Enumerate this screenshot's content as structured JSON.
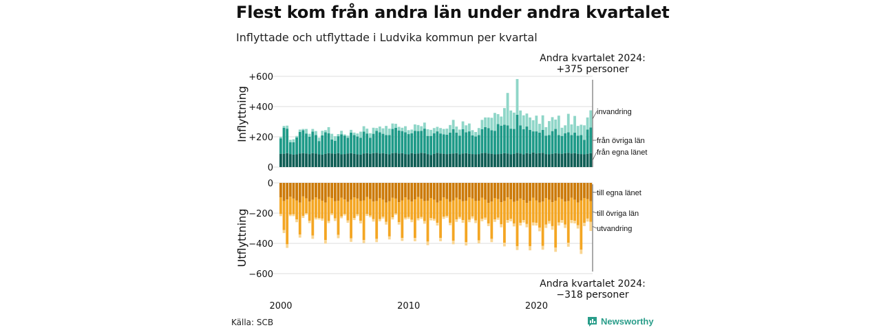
{
  "header": {
    "title": "Flest kom från andra län under andra kvartalet",
    "subtitle": "Inflyttade och utflyttade i Ludvika kommun per kvartal"
  },
  "footer": {
    "source": "Källa: SCB",
    "brand": "Newsworthy",
    "brand_icon": "bar-chart-icon"
  },
  "colors": {
    "in_local": "#0f5e55",
    "in_other": "#1e9a88",
    "in_foreign": "#8fd6c8",
    "out_local": "#cc7a08",
    "out_other": "#f4a623",
    "out_foreign": "#f9d592",
    "grid": "#dddddd",
    "marker_line": "#555555"
  },
  "chart_data": [
    {
      "type": "bar",
      "stacked": true,
      "title": "Inflyttning",
      "ylabel": "Inflyttning",
      "ylim": [
        0,
        600
      ],
      "yticks": [
        0,
        200,
        400,
        600
      ],
      "ytick_labels": [
        "0",
        "+200",
        "+400",
        "+600"
      ],
      "x_start": "2000 Q1",
      "x_end": "2024 Q2",
      "xticks": [
        "2000",
        "2010",
        "2020"
      ],
      "series": [
        {
          "name": "från egna länet",
          "values": [
            88,
            88,
            92,
            86,
            82,
            84,
            90,
            92,
            90,
            86,
            92,
            90,
            84,
            82,
            88,
            92,
            90,
            88,
            92,
            84,
            86,
            90,
            92,
            88,
            84,
            82,
            90,
            92,
            88,
            92,
            94,
            90,
            92,
            88,
            84,
            92,
            94,
            90,
            92,
            86,
            84,
            92,
            88,
            90,
            94,
            92,
            86,
            80,
            88,
            94,
            90,
            88,
            86,
            88,
            90,
            92,
            84,
            90,
            92,
            88,
            86,
            84,
            86,
            92,
            94,
            90,
            88,
            84,
            86,
            88,
            92,
            90,
            84,
            88,
            94,
            90,
            84,
            92,
            88,
            96,
            90,
            92,
            94,
            86,
            84,
            88,
            92,
            90,
            88,
            92,
            94,
            90,
            92,
            88,
            86,
            84,
            88,
            92
          ]
        },
        {
          "name": "från övriga län",
          "values": [
            102,
            172,
            162,
            78,
            82,
            112,
            142,
            152,
            132,
            114,
            142,
            122,
            88,
            128,
            142,
            132,
            92,
            86,
            112,
            132,
            122,
            104,
            136,
            124,
            118,
            112,
            144,
            130,
            106,
            128,
            146,
            140,
            128,
            124,
            128,
            160,
            166,
            152,
            146,
            144,
            134,
            132,
            152,
            148,
            146,
            162,
            120,
            126,
            136,
            142,
            132,
            128,
            128,
            140,
            160,
            136,
            124,
            160,
            138,
            148,
            124,
            118,
            126,
            158,
            170,
            168,
            156,
            156,
            198,
            186,
            188,
            186,
            170,
            164,
            252,
            186,
            166,
            176,
            158,
            140,
            146,
            136,
            152,
            122,
            128,
            150,
            160,
            122,
            118,
            132,
            136,
            122,
            136,
            120,
            126,
            96,
            160,
            170
          ]
        },
        {
          "name": "invandring",
          "values": [
            10,
            12,
            20,
            16,
            20,
            10,
            16,
            8,
            30,
            20,
            18,
            26,
            22,
            30,
            14,
            40,
            38,
            30,
            14,
            24,
            8,
            14,
            18,
            16,
            20,
            40,
            36,
            32,
            30,
            40,
            18,
            38,
            36,
            60,
            42,
            36,
            26,
            24,
            22,
            40,
            26,
            24,
            42,
            40,
            30,
            40,
            44,
            40,
            34,
            30,
            36,
            36,
            40,
            50,
            62,
            40,
            40,
            52,
            46,
            52,
            34,
            30,
            46,
            62,
            64,
            70,
            82,
            118,
            66,
            60,
            110,
            214,
            120,
            108,
            236,
            98,
            92,
            86,
            82,
            74,
            104,
            58,
            96,
            56,
            92,
            92,
            62,
            128,
            54,
            52,
            122,
            70,
            110,
            64,
            68,
            96,
            80,
            113
          ]
        }
      ]
    },
    {
      "type": "bar",
      "stacked": true,
      "title": "Utflyttning",
      "ylabel": "Utflyttning",
      "ylim": [
        -600,
        0
      ],
      "yticks": [
        0,
        -200,
        -400,
        -600
      ],
      "ytick_labels": [
        "0",
        "−200",
        "−400",
        "−600"
      ],
      "x_start": "2000 Q1",
      "x_end": "2024 Q2",
      "xticks": [
        "2000",
        "2010",
        "2020"
      ],
      "series": [
        {
          "name": "till egna länet",
          "values": [
            -96,
            -120,
            -110,
            -92,
            -104,
            -116,
            -130,
            -90,
            -102,
            -124,
            -112,
            -96,
            -108,
            -118,
            -130,
            -94,
            -100,
            -122,
            -118,
            -98,
            -110,
            -126,
            -112,
            -96,
            -104,
            -120,
            -116,
            -94,
            -108,
            -124,
            -120,
            -100,
            -112,
            -130,
            -122,
            -98,
            -104,
            -128,
            -116,
            -96,
            -112,
            -124,
            -110,
            -94,
            -106,
            -120,
            -118,
            -100,
            -112,
            -130,
            -118,
            -96,
            -108,
            -126,
            -116,
            -98,
            -110,
            -122,
            -118,
            -96,
            -104,
            -120,
            -118,
            -98,
            -112,
            -132,
            -124,
            -100,
            -108,
            -128,
            -120,
            -96,
            -110,
            -126,
            -118,
            -104,
            -114,
            -132,
            -120,
            -98,
            -116,
            -130,
            -124,
            -100,
            -112,
            -128,
            -118,
            -96,
            -108,
            -124,
            -120,
            -98,
            -112,
            -130,
            -116,
            -100,
            -108,
            -122
          ]
        },
        {
          "name": "till övriga län",
          "values": [
            -110,
            -192,
            -296,
            -118,
            -104,
            -126,
            -212,
            -128,
            -98,
            -126,
            -236,
            -134,
            -124,
            -118,
            -248,
            -158,
            -102,
            -112,
            -226,
            -124,
            -96,
            -122,
            -254,
            -136,
            -104,
            -130,
            -262,
            -112,
            -108,
            -116,
            -250,
            -140,
            -112,
            -128,
            -232,
            -130,
            -98,
            -132,
            -248,
            -134,
            -114,
            -120,
            -254,
            -140,
            -120,
            -132,
            -270,
            -132,
            -126,
            -134,
            -246,
            -128,
            -110,
            -138,
            -266,
            -144,
            -116,
            -124,
            -274,
            -148,
            -118,
            -128,
            -262,
            -140,
            -118,
            -136,
            -246,
            -142,
            -122,
            -146,
            -276,
            -150,
            -128,
            -142,
            -300,
            -160,
            -132,
            -140,
            -298,
            -164,
            -148,
            -166,
            -292,
            -176,
            -140,
            -158,
            -310,
            -166,
            -138,
            -152,
            -276,
            -148,
            -138,
            -150,
            -326,
            -164,
            -128,
            -136
          ]
        },
        {
          "name": "utvandring",
          "values": [
            -14,
            -20,
            -24,
            -10,
            -12,
            -18,
            -20,
            -14,
            -10,
            -16,
            -22,
            -12,
            -10,
            -14,
            -24,
            -14,
            -12,
            -18,
            -22,
            -12,
            -10,
            -16,
            -24,
            -14,
            -12,
            -18,
            -20,
            -12,
            -12,
            -16,
            -22,
            -14,
            -12,
            -18,
            -20,
            -14,
            -10,
            -16,
            -20,
            -12,
            -12,
            -16,
            -22,
            -14,
            -12,
            -18,
            -24,
            -16,
            -12,
            -18,
            -22,
            -14,
            -12,
            -16,
            -24,
            -16,
            -12,
            -18,
            -22,
            -16,
            -14,
            -18,
            -20,
            -16,
            -14,
            -18,
            -22,
            -16,
            -14,
            -20,
            -24,
            -18,
            -16,
            -20,
            -26,
            -18,
            -16,
            -22,
            -28,
            -20,
            -18,
            -24,
            -26,
            -22,
            -18,
            -24,
            -28,
            -20,
            -18,
            -22,
            -26,
            -20,
            -18,
            -22,
            -28,
            -22,
            -20,
            -60
          ]
        }
      ]
    }
  ],
  "annotations": {
    "top_line1": "Andra kvartalet 2024:",
    "top_line2": "+375 personer",
    "bottom_line1": "Andra kvartalet 2024:",
    "bottom_line2": "−318 personer"
  }
}
